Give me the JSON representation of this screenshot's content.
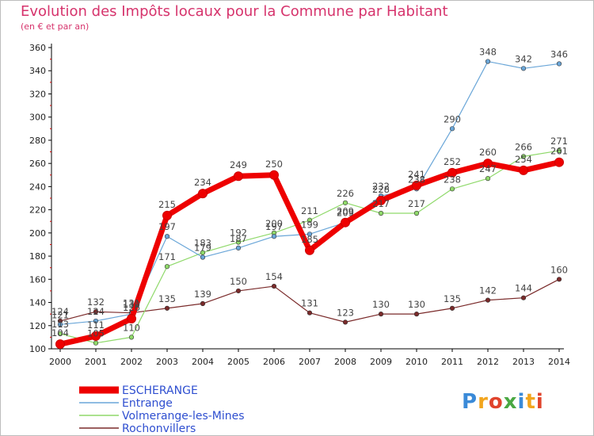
{
  "header": {
    "title": "Evolution des Impôts locaux pour la Commune par Habitant",
    "subtitle": "(en € et par an)"
  },
  "logo": {
    "text": "Proxiti",
    "colors": [
      "#3a8ad8",
      "#f2a51e",
      "#e0432c",
      "#4aa843",
      "#3a8ad8",
      "#f2a51e",
      "#e0432c"
    ]
  },
  "chart_data": {
    "type": "line",
    "title": "Evolution des Impôts locaux pour la Commune par Habitant",
    "subtitle": "(en € et par an)",
    "x": [
      2000,
      2001,
      2002,
      2003,
      2004,
      2005,
      2006,
      2007,
      2008,
      2009,
      2010,
      2011,
      2012,
      2013,
      2014
    ],
    "xticks": [
      "2000",
      "2001",
      "2002",
      "2003",
      "2004",
      "2005",
      "2006",
      "2007",
      "2008",
      "2009",
      "2010",
      "2011",
      "2012",
      "2013",
      "2014"
    ],
    "ylim": [
      100,
      360
    ],
    "yticks": [
      100,
      120,
      140,
      160,
      180,
      200,
      220,
      240,
      260,
      280,
      300,
      320,
      340,
      360
    ],
    "grid": false,
    "legend_position": "bottom-left",
    "series": [
      {
        "name": "Rochonvillers",
        "color": "#7a2a2a",
        "width": 1.2,
        "marker": 5,
        "values": [
          124,
          132,
          131,
          135,
          139,
          150,
          154,
          131,
          123,
          130,
          130,
          135,
          142,
          144,
          160
        ],
        "labels": [
          "124",
          "132",
          "131",
          "135",
          "139",
          "150",
          "154",
          "131",
          "123",
          "130",
          "130",
          "135",
          "142",
          "144",
          "160"
        ]
      },
      {
        "name": "Volmerange-les-Mines",
        "color": "#8fd96a",
        "width": 1.2,
        "marker": 5,
        "values": [
          113,
          105,
          110,
          171,
          183,
          192,
          200,
          211,
          226,
          217,
          217,
          238,
          247,
          266,
          271
        ],
        "labels": [
          "113",
          "105",
          "110",
          "171",
          "183",
          "192",
          "200",
          "211",
          "226",
          "217",
          "217",
          "238",
          "247",
          "266",
          "271"
        ]
      },
      {
        "name": "Entrange",
        "color": "#6aa6d8",
        "width": 1.2,
        "marker": 5,
        "values": [
          121,
          124,
          130,
          197,
          179,
          187,
          197,
          199,
          209,
          232,
          238,
          290,
          348,
          342,
          346
        ],
        "labels": [
          "121",
          "124",
          "130",
          "197",
          "179",
          "187",
          "197",
          "199",
          "209",
          "232",
          "238",
          "290",
          "348",
          "342",
          "346"
        ]
      },
      {
        "name": "ESCHERANGE",
        "color": "#ee0000",
        "width": 7,
        "marker": 10,
        "values": [
          104,
          111,
          126,
          215,
          234,
          249,
          250,
          185,
          209,
          228,
          241,
          252,
          260,
          254,
          261
        ],
        "labels": [
          "104",
          "111",
          "126",
          "215",
          "234",
          "249",
          "250",
          "185",
          "209",
          "228",
          "241",
          "252",
          "260",
          "254",
          "261"
        ]
      }
    ]
  }
}
